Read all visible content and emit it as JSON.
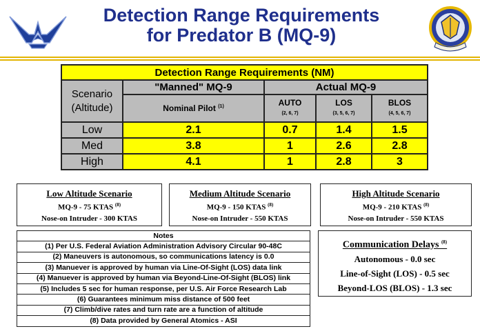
{
  "title": {
    "line1": "Detection Range Requirements",
    "line2": "for Predator B (MQ-9)"
  },
  "colors": {
    "title": "#1f2f8c",
    "yellow": "#ffff00",
    "gray": "#bcbcbc",
    "rule": "#e3b400"
  },
  "table": {
    "caption": "Detection Range Requirements (NM)",
    "scenario_label_1": "Scenario",
    "scenario_label_2": "(Altitude)",
    "manned_header": "\"Manned\" MQ-9",
    "actual_header": "Actual MQ-9",
    "nominal_pilot": "Nominal Pilot",
    "nominal_note": "(1)",
    "auto": "AUTO",
    "auto_note": "(2, 6, 7)",
    "los": "LOS",
    "los_note": "(3, 5, 6, 7)",
    "blos": "BLOS",
    "blos_note": "(4, 5, 6, 7)",
    "rows": [
      {
        "label": "Low",
        "manned": "2.1",
        "auto": "0.7",
        "los": "1.4",
        "blos": "1.5"
      },
      {
        "label": "Med",
        "manned": "3.8",
        "auto": "1",
        "los": "2.6",
        "blos": "2.8"
      },
      {
        "label": "High",
        "manned": "4.1",
        "auto": "1",
        "los": "2.8",
        "blos": "3"
      }
    ]
  },
  "scenarios": {
    "low": {
      "title": "Low Altitude Scenario",
      "line1": "MQ-9 - 75 KTAS",
      "note": "(8)",
      "line2": "Nose-on Intruder - 300 KTAS"
    },
    "med": {
      "title": "Medium Altitude Scenario",
      "line1": "MQ-9 - 150 KTAS",
      "note": "(8)",
      "line2": "Nose-on Intruder - 550 KTAS"
    },
    "high": {
      "title": "High Altitude Scenario",
      "line1": "MQ-9 - 210 KTAS",
      "note": "(8)",
      "line2": "Nose-on Intruder - 550 KTAS"
    }
  },
  "notes": {
    "header": "Notes",
    "items": [
      "(1) Per U.S. Federal Aviation Administration Advisory Circular 90-48C",
      "(2) Maneuvers is autonomous, so communications latency is 0.0",
      "(3) Manuever is approved by human via Line-Of-Sight (LOS) data link",
      "(4) Manuever is approved by human via Beyond-Line-Of-Sight (BLOS) link",
      "(5) Includes 5 sec for human response, per U.S. Air Force Research Lab",
      "(6) Guarantees minimum miss distance of 500 feet",
      "(7) Climb/dive rates and turn rate are a function of altitude",
      "(8) Data provided by General Atomics - ASI"
    ]
  },
  "comm": {
    "title": "Communication Delays",
    "note": "(8)",
    "lines": [
      "Autonomous - 0.0 sec",
      "Line-of-Sight (LOS) - 0.5 sec",
      "Beyond-LOS (BLOS) - 1.3 sec"
    ]
  },
  "icons": {
    "left": "air-force-wings-logo",
    "right": "air-force-shield-logo"
  }
}
